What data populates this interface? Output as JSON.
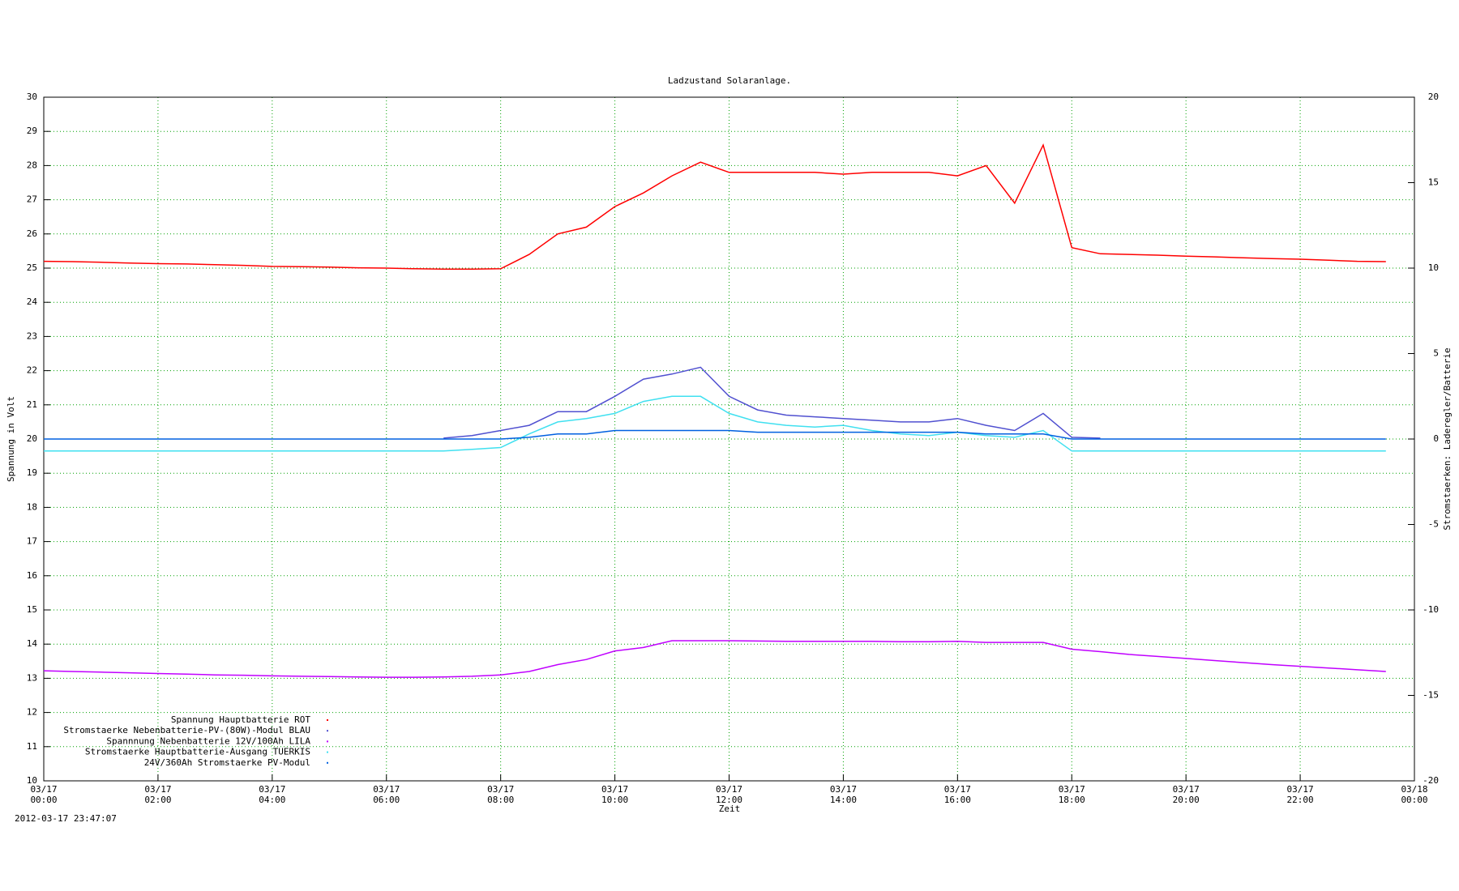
{
  "chart_data": {
    "type": "line",
    "title": "Ladzustand Solaranlage.",
    "ylabel": "Spannung in Volt",
    "y2label": "Stromstaerken: Laderegler/Batterie",
    "xlabel": "Zeit",
    "timestamp": "2012-03-17 23:47:07",
    "grid": true,
    "legend": "lower left",
    "xlim": [
      "03/17 00:00",
      "03/18 00:00"
    ],
    "xticks": [
      "03/17 00:00",
      "03/17 02:00",
      "03/17 04:00",
      "03/17 06:00",
      "03/17 08:00",
      "03/17 10:00",
      "03/17 12:00",
      "03/17 14:00",
      "03/17 16:00",
      "03/17 18:00",
      "03/17 20:00",
      "03/17 22:00",
      "03/18 00:00"
    ],
    "ylim": [
      10,
      30
    ],
    "yticks": [
      10,
      11,
      12,
      13,
      14,
      15,
      16,
      17,
      18,
      19,
      20,
      21,
      22,
      23,
      24,
      25,
      26,
      27,
      28,
      29,
      30
    ],
    "y2lim": [
      -20,
      20
    ],
    "y2ticks": [
      -20,
      -15,
      -10,
      -5,
      0,
      5,
      10,
      15,
      20
    ],
    "x": [
      "03/17 00:00",
      "03/17 00:30",
      "03/17 01:00",
      "03/17 01:30",
      "03/17 02:00",
      "03/17 02:30",
      "03/17 03:00",
      "03/17 03:30",
      "03/17 04:00",
      "03/17 04:30",
      "03/17 05:00",
      "03/17 05:30",
      "03/17 06:00",
      "03/17 06:30",
      "03/17 07:00",
      "03/17 07:30",
      "03/17 08:00",
      "03/17 08:30",
      "03/17 09:00",
      "03/17 09:30",
      "03/17 10:00",
      "03/17 10:30",
      "03/17 11:00",
      "03/17 11:30",
      "03/17 12:00",
      "03/17 12:30",
      "03/17 13:00",
      "03/17 13:30",
      "03/17 14:00",
      "03/17 14:30",
      "03/17 15:00",
      "03/17 15:30",
      "03/17 16:00",
      "03/17 16:30",
      "03/17 17:00",
      "03/17 17:30",
      "03/17 18:00",
      "03/17 18:30",
      "03/17 19:00",
      "03/17 19:30",
      "03/17 20:00",
      "03/17 20:30",
      "03/17 21:00",
      "03/17 21:30",
      "03/17 22:00",
      "03/17 22:30",
      "03/17 23:00",
      "03/17 23:30"
    ],
    "series": [
      {
        "name": "Spannung Hauptbatterie ROT",
        "color": "#ff0000",
        "values": [
          25.2,
          25.19,
          25.17,
          25.15,
          25.13,
          25.12,
          25.1,
          25.08,
          25.05,
          25.04,
          25.03,
          25.01,
          25.0,
          24.98,
          24.97,
          24.97,
          24.98,
          25.4,
          26.0,
          26.2,
          26.8,
          27.2,
          27.7,
          28.1,
          27.8,
          27.8,
          27.8,
          27.8,
          27.75,
          27.8,
          27.8,
          27.8,
          27.7,
          28.0,
          26.9,
          28.6,
          25.6,
          25.42,
          25.4,
          25.38,
          25.35,
          25.33,
          25.3,
          25.28,
          25.26,
          25.23,
          25.2,
          25.19
        ]
      },
      {
        "name": "Stromstaerke Nebenbatterie-PV-(80W)-Modul BLAU",
        "color": "#5050d0",
        "axis": "y2",
        "values": [
          null,
          null,
          null,
          null,
          null,
          null,
          null,
          null,
          null,
          null,
          null,
          null,
          null,
          null,
          0.05,
          0.2,
          0.5,
          0.8,
          1.6,
          1.6,
          2.5,
          3.5,
          3.8,
          4.2,
          2.5,
          1.7,
          1.4,
          1.3,
          1.2,
          1.1,
          1.0,
          1.0,
          1.2,
          0.8,
          0.5,
          1.5,
          0.1,
          0.05,
          null,
          null,
          null,
          null,
          null,
          null,
          null,
          null,
          null,
          null
        ]
      },
      {
        "name": "Spannnung Nebenbatterie 12V/100Ah LILA",
        "color": "#c000ff",
        "values": [
          13.22,
          13.2,
          13.18,
          13.16,
          13.14,
          13.12,
          13.1,
          13.09,
          13.07,
          13.06,
          13.05,
          13.04,
          13.03,
          13.03,
          13.04,
          13.06,
          13.1,
          13.2,
          13.4,
          13.55,
          13.8,
          13.9,
          14.1,
          14.1,
          14.1,
          14.09,
          14.08,
          14.08,
          14.08,
          14.08,
          14.07,
          14.07,
          14.08,
          14.05,
          14.05,
          14.05,
          13.85,
          13.78,
          13.7,
          13.64,
          13.58,
          13.52,
          13.46,
          13.4,
          13.35,
          13.3,
          13.25,
          13.2
        ]
      },
      {
        "name": "Stromstaerke Hauptbatterie-Ausgang TUERKIS",
        "color": "#40e0f0",
        "axis": "y2",
        "values": [
          -0.7,
          -0.7,
          -0.7,
          -0.7,
          -0.7,
          -0.7,
          -0.7,
          -0.7,
          -0.7,
          -0.7,
          -0.7,
          -0.7,
          -0.7,
          -0.7,
          -0.7,
          -0.6,
          -0.5,
          0.3,
          1.0,
          1.2,
          1.5,
          2.2,
          2.5,
          2.5,
          1.5,
          1.0,
          0.8,
          0.7,
          0.8,
          0.5,
          0.3,
          0.2,
          0.4,
          0.2,
          0.1,
          0.5,
          -0.7,
          -0.7,
          -0.7,
          -0.7,
          -0.7,
          -0.7,
          -0.7,
          -0.7,
          -0.7,
          -0.7,
          -0.7,
          -0.7
        ]
      },
      {
        "name": "24V/360Ah Stromstaerke PV-Modul",
        "color": "#0060e0",
        "axis": "y2",
        "values": [
          0,
          0,
          0,
          0,
          0,
          0,
          0,
          0,
          0,
          0,
          0,
          0,
          0,
          0,
          0,
          0,
          0,
          0.1,
          0.3,
          0.3,
          0.5,
          0.5,
          0.5,
          0.5,
          0.5,
          0.4,
          0.4,
          0.4,
          0.4,
          0.4,
          0.4,
          0.4,
          0.4,
          0.3,
          0.3,
          0.3,
          0,
          0,
          0,
          0,
          0,
          0,
          0,
          0,
          0,
          0,
          0,
          0
        ]
      }
    ]
  }
}
